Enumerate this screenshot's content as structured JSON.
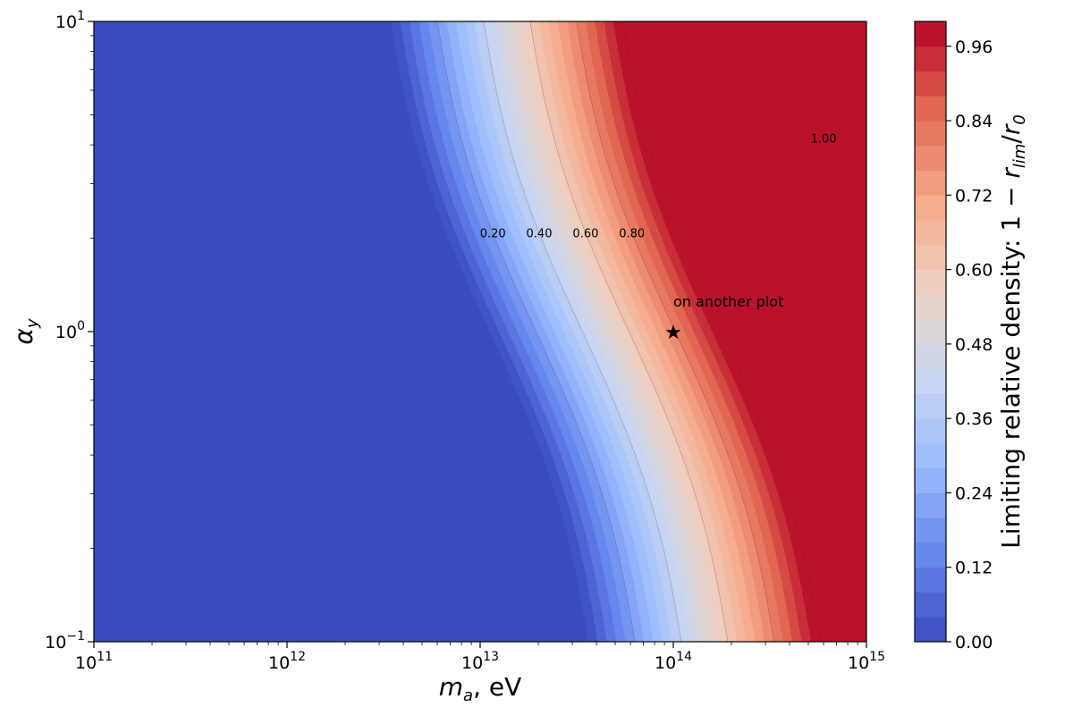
{
  "chart_data": {
    "type": "heatmap",
    "subtype": "filled-contour",
    "title": "",
    "xlabel": {
      "sym": "m",
      "sub": "a",
      "rest": ", eV"
    },
    "ylabel": {
      "sym": "α",
      "sub": "y"
    },
    "xscale": "log",
    "yscale": "log",
    "xlim": [
      100000000000.0,
      1000000000000000.0
    ],
    "ylim": [
      0.1,
      10
    ],
    "x_tick_labels": [
      {
        "base": "10",
        "exp": "11",
        "value": 100000000000.0
      },
      {
        "base": "10",
        "exp": "12",
        "value": 1000000000000.0
      },
      {
        "base": "10",
        "exp": "13",
        "value": 10000000000000.0
      },
      {
        "base": "10",
        "exp": "14",
        "value": 100000000000000.0
      },
      {
        "base": "10",
        "exp": "15",
        "value": 1000000000000000.0
      }
    ],
    "y_tick_labels": [
      {
        "base": "10",
        "exp": "−1",
        "value": 0.1
      },
      {
        "base": "10",
        "exp": "0",
        "value": 1
      },
      {
        "base": "10",
        "exp": "1",
        "value": 10
      }
    ],
    "colormap": "coolwarm",
    "colormap_stops": [
      "#3b4cc0",
      "#6788ee",
      "#9abbff",
      "#c9d7f0",
      "#edd1c2",
      "#f7a889",
      "#e26952",
      "#b40426"
    ],
    "colorbar": {
      "label": {
        "prefix": "Limiting relative density: 1 − ",
        "sym": "r",
        "sub": "lim",
        "mid": "/",
        "sym2": "r",
        "sub2": "0"
      },
      "levels": 25,
      "range": [
        0,
        1
      ],
      "tick_labels": [
        "0.00",
        "0.12",
        "0.24",
        "0.36",
        "0.48",
        "0.60",
        "0.72",
        "0.84",
        "0.96"
      ],
      "tick_values": [
        0.0,
        0.12,
        0.24,
        0.36,
        0.48,
        0.6,
        0.72,
        0.84,
        0.96
      ]
    },
    "contour_lines": [
      {
        "label": "0.20",
        "level": 0.2,
        "x": [
          10000000000000.0,
          18000000000000.0,
          30000000000000.0,
          45000000000000.0
        ],
        "y": [
          10,
          2.1,
          0.5,
          0.1
        ]
      },
      {
        "label": "0.40",
        "level": 0.4,
        "x": [
          12000000000000.0,
          31000000000000.0,
          55000000000000.0,
          75000000000000.0
        ],
        "y": [
          10,
          2.1,
          0.5,
          0.1
        ]
      },
      {
        "label": "0.60",
        "level": 0.6,
        "x": [
          19000000000000.0,
          58000000000000.0,
          100000000000000.0,
          160000000000000.0
        ],
        "y": [
          10,
          2.0,
          0.5,
          0.1
        ]
      },
      {
        "label": "0.80",
        "level": 0.8,
        "x": [
          32000000000000.0,
          120000000000000.0,
          260000000000000.0,
          480000000000000.0
        ],
        "y": [
          10,
          2.0,
          0.5,
          0.1
        ]
      },
      {
        "label": "1.00",
        "level": 1.0,
        "x": [
          60000000000000.0,
          220000000000000.0,
          530000000000000.0,
          1000000000000000.0
        ],
        "y": [
          10,
          4.2,
          0.6,
          0.38
        ]
      }
    ],
    "surface_model": "value = (log10(m_a) − center(α))/width, center(α)=13.05 − 0.5·log10(α) − 0.08·sin(3·log10(α)), width≈1.2",
    "marker": {
      "symbol": "★",
      "x": 100000000000000.0,
      "y": 1.0,
      "label": "on another plot"
    },
    "grid": false,
    "legend": "none"
  }
}
